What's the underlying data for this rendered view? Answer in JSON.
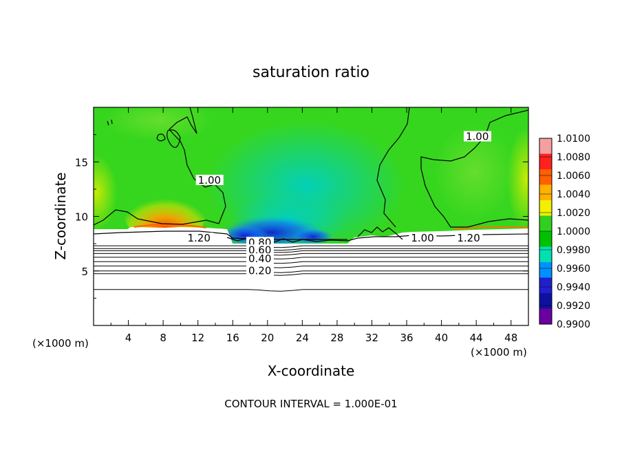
{
  "chart_data": {
    "type": "heatmap",
    "title": "saturation ratio",
    "xlabel": "X-coordinate",
    "ylabel": "Z-coordinate",
    "x_unit_left": "(×1000 m)",
    "x_unit_right": "(×1000 m)",
    "xlim": [
      0,
      50
    ],
    "ylim": [
      0,
      20
    ],
    "xticks": [
      4,
      8,
      12,
      16,
      20,
      24,
      28,
      32,
      36,
      40,
      44,
      48
    ],
    "yticks": [
      5,
      10,
      15
    ],
    "footer": "CONTOUR INTERVAL = 1.000E-01",
    "colorbar": {
      "labels": [
        "1.0100",
        "1.0080",
        "1.0060",
        "1.0040",
        "1.0020",
        "1.0000",
        "0.9980",
        "0.9960",
        "0.9940",
        "0.9920",
        "0.9900"
      ],
      "colors": [
        "#f4a0a0",
        "#ff2020",
        "#ff6000",
        "#ffb000",
        "#f0f000",
        "#30d020",
        "#00c000",
        "#00e0b0",
        "#0090ff",
        "#2020d0",
        "#1010a0",
        "#6a00a0"
      ]
    },
    "contour_labels": [
      {
        "text": "1.20",
        "x": 10.8,
        "y": 7.7
      },
      {
        "text": "0.80",
        "x": 17.8,
        "y": 7.3
      },
      {
        "text": "0.60",
        "x": 17.8,
        "y": 6.6
      },
      {
        "text": "0.40",
        "x": 17.8,
        "y": 5.8
      },
      {
        "text": "0.20",
        "x": 17.8,
        "y": 4.7
      },
      {
        "text": "1.00",
        "x": 12.0,
        "y": 13.0
      },
      {
        "text": "1.00",
        "x": 42.8,
        "y": 17.0
      },
      {
        "text": "1.00",
        "x": 36.5,
        "y": 7.7
      },
      {
        "text": "1.20",
        "x": 41.8,
        "y": 7.7
      }
    ],
    "horizontal_contours_z": [
      7.3,
      7.05,
      6.85,
      6.6,
      6.25,
      5.85,
      5.45,
      5.0,
      4.75,
      3.3
    ]
  }
}
